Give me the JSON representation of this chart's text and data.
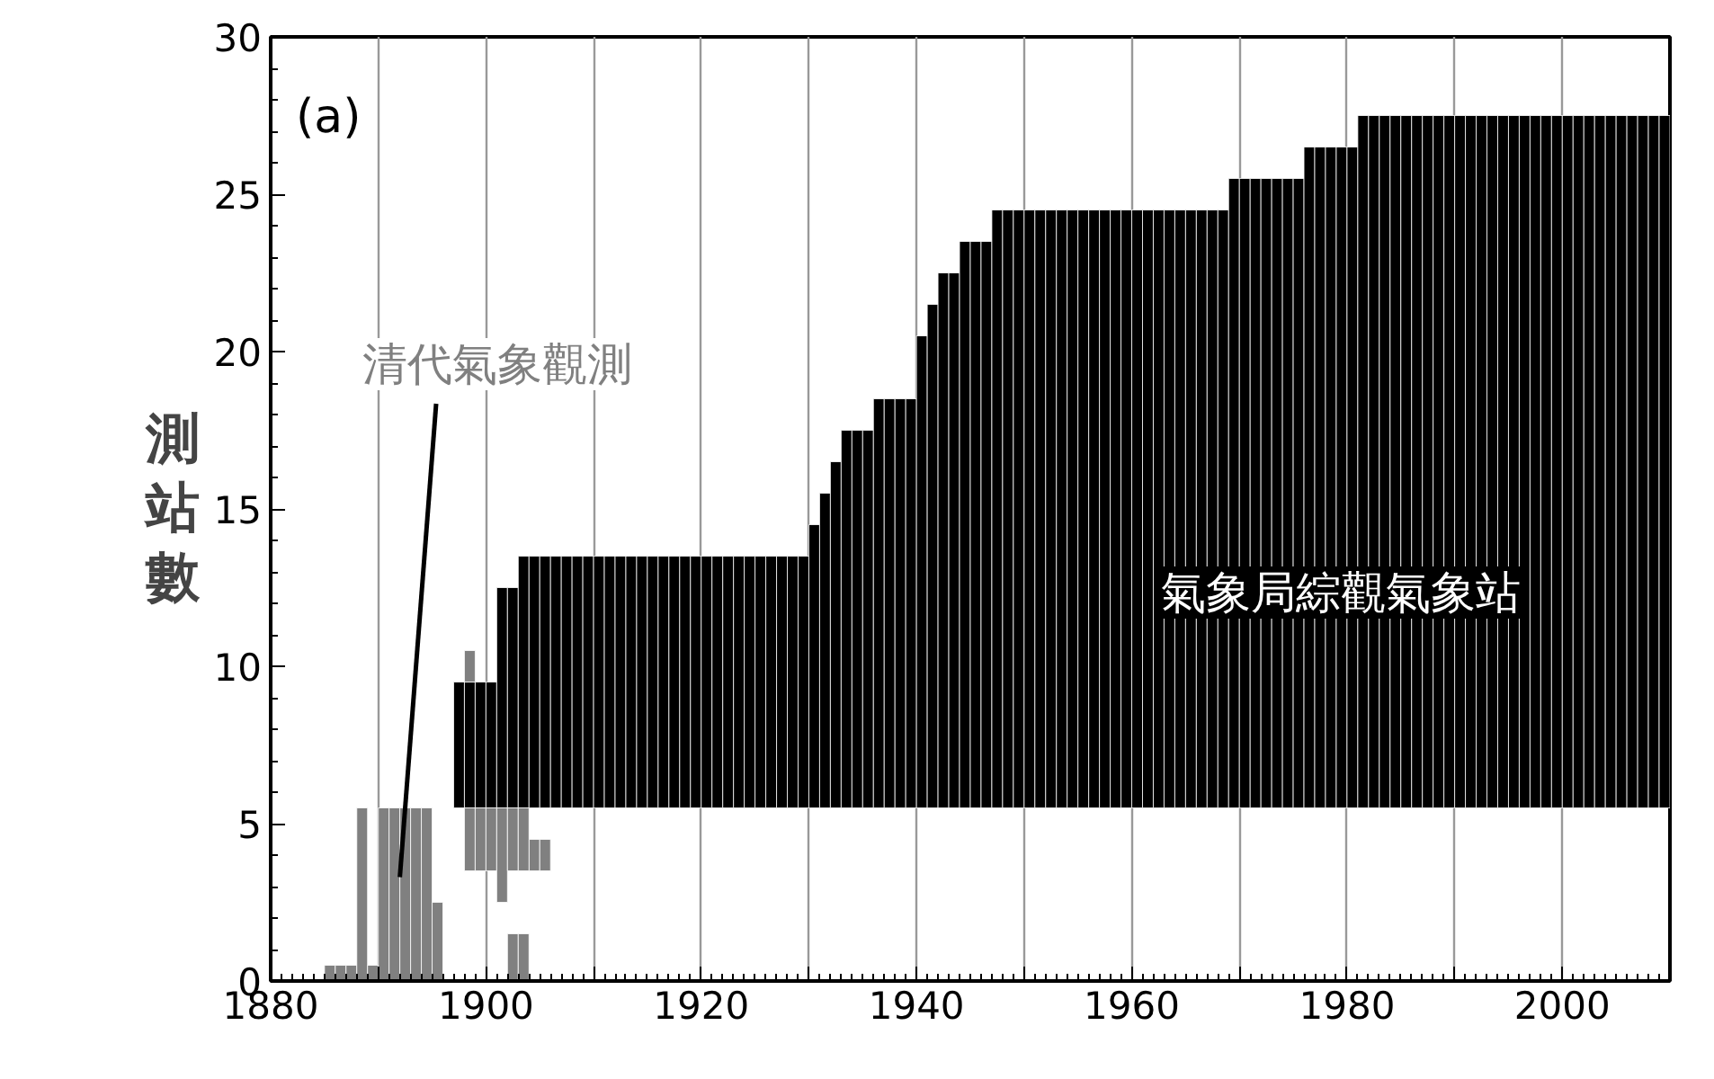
{
  "chart_data": {
    "type": "bar",
    "ylabel": "測站數",
    "grid": "x",
    "xlim": [
      1880,
      2010
    ],
    "ylim": [
      0,
      30
    ],
    "xticks": [
      1880,
      {
        "value": 1890,
        "label": null
      },
      1900,
      {
        "value": 1910,
        "label": null
      },
      1920,
      {
        "value": 1930,
        "label": null
      },
      1940,
      {
        "value": 1950,
        "label": null
      },
      1960,
      {
        "value": 1970,
        "label": null
      },
      1980,
      {
        "value": 1990,
        "label": null
      },
      2000,
      {
        "value": 2010,
        "label": null
      }
    ],
    "yticks": [
      0,
      5,
      10,
      15,
      20,
      25,
      30
    ],
    "annotations": [
      "(a)",
      {
        "text": "清代氣象觀測",
        "x": 1892,
        "y": 3.3
      },
      "氣象局綜觀氣象站"
    ],
    "series": [
      {
        "color": "#000000",
        "x": [
          1897.5,
          1898.5,
          1899.5,
          1900.5,
          1901.5,
          1902.5,
          1903.5,
          1904.5,
          1905.5,
          1906.5,
          1907.5,
          1908.5,
          1909.5,
          1910.5,
          1911.5,
          1912.5,
          1913.5,
          1914.5,
          1915.5,
          1916.5,
          1917.5,
          1918.5,
          1919.5,
          1920.5,
          1921.5,
          1922.5,
          1923.5,
          1924.5,
          1925.5,
          1926.5,
          1927.5,
          1928.5,
          1929.5,
          1930.5,
          1931.5,
          1932.5,
          1933.5,
          1934.5,
          1935.5,
          1936.5,
          1937.5,
          1938.5,
          1939.5,
          1940.5,
          1941.5,
          1942.5,
          1943.5,
          1944.5,
          1945.5,
          1946.5,
          1947.5,
          1948.5,
          1949.5,
          1950.5,
          1951.5,
          1952.5,
          1953.5,
          1954.5,
          1955.5,
          1956.5,
          1957.5,
          1958.5,
          1959.5,
          1960.5,
          1961.5,
          1962.5,
          1963.5,
          1964.5,
          1965.5,
          1966.5,
          1967.5,
          1968.5,
          1969.5,
          1970.5,
          1971.5,
          1972.5,
          1973.5,
          1974.5,
          1975.5,
          1976.5,
          1977.5,
          1978.5,
          1979.5,
          1980.5,
          1981.5,
          1982.5,
          1983.5,
          1984.5,
          1985.5,
          1986.5,
          1987.5,
          1988.5,
          1989.5,
          1990.5,
          1991.5,
          1992.5,
          1993.5,
          1994.5,
          1995.5,
          1996.5,
          1997.5,
          1998.5,
          1999.5,
          2000.5,
          2001.5,
          2002.5,
          2003.5,
          2004.5,
          2005.5,
          2006.5,
          2007.5,
          2008.5,
          2009.5
        ],
        "base": [
          5.5,
          5.5,
          5.5,
          5.5,
          5.5,
          5.5,
          5.5,
          5.5,
          5.5,
          5.5,
          5.5,
          5.5,
          5.5,
          5.5,
          5.5,
          5.5,
          5.5,
          5.5,
          5.5,
          5.5,
          5.5,
          5.5,
          5.5,
          5.5,
          5.5,
          5.5,
          5.5,
          5.5,
          5.5,
          5.5,
          5.5,
          5.5,
          5.5,
          5.5,
          5.5,
          5.5,
          5.5,
          5.5,
          5.5,
          5.5,
          5.5,
          5.5,
          5.5,
          5.5,
          5.5,
          5.5,
          5.5,
          5.5,
          5.5,
          5.5,
          5.5,
          5.5,
          5.5,
          5.5,
          5.5,
          5.5,
          5.5,
          5.5,
          5.5,
          5.5,
          5.5,
          5.5,
          5.5,
          5.5,
          5.5,
          5.5,
          5.5,
          5.5,
          5.5,
          5.5,
          5.5,
          5.5,
          5.5,
          5.5,
          5.5,
          5.5,
          5.5,
          5.5,
          5.5,
          5.5,
          5.5,
          5.5,
          5.5,
          5.5,
          5.5,
          5.5,
          5.5,
          5.5,
          5.5,
          5.5,
          5.5,
          5.5,
          5.5,
          5.5,
          5.5,
          5.5,
          5.5,
          5.5,
          5.5,
          5.5,
          5.5,
          5.5,
          5.5,
          5.5,
          5.5,
          5.5,
          5.5,
          5.5,
          5.5,
          5.5,
          5.5,
          5.5,
          5.5
        ],
        "values": [
          4,
          4,
          4,
          4,
          7,
          7,
          8,
          8,
          8,
          8,
          8,
          8,
          8,
          8,
          8,
          8,
          8,
          8,
          8,
          8,
          8,
          8,
          8,
          8,
          8,
          8,
          8,
          8,
          8,
          8,
          8,
          8,
          8,
          9,
          10,
          11,
          12,
          12,
          12,
          13,
          13,
          13,
          13,
          15,
          16,
          17,
          17,
          18,
          18,
          18,
          19,
          19,
          19,
          19,
          19,
          19,
          19,
          19,
          19,
          19,
          19,
          19,
          19,
          19,
          19,
          19,
          19,
          19,
          19,
          19,
          19,
          19,
          20,
          20,
          20,
          20,
          20,
          20,
          20,
          21,
          21,
          21,
          21,
          21,
          22,
          22,
          22,
          22,
          22,
          22,
          22,
          22,
          22,
          22,
          22,
          22,
          22,
          22,
          22,
          22,
          22,
          22,
          22,
          22,
          22,
          22,
          22,
          22,
          22,
          22,
          22,
          22,
          22
        ]
      },
      {
        "color": "#808080",
        "x": [
          1885.5,
          1886.5,
          1887.5,
          1888.5,
          1889.5,
          1890.5,
          1891.5,
          1892.5,
          1893.5,
          1894.5,
          1895.5,
          1898.5,
          1899.5,
          1900.5,
          1901.5,
          1902.5,
          1903.5,
          1904.5,
          1905.5
        ],
        "base": [
          0,
          0,
          0,
          0,
          0,
          0,
          0,
          0,
          0,
          0,
          0,
          3.5,
          3.5,
          3.5,
          2.5,
          0,
          0,
          3.5,
          3.5
        ],
        "values": [
          0.5,
          0.5,
          0.5,
          5.5,
          0.5,
          5.5,
          5.5,
          5.5,
          5.5,
          5.5,
          2.5,
          2,
          2,
          2,
          3,
          1.5,
          1.5,
          1,
          1
        ]
      },
      {
        "color": "#808080",
        "x": [
          1898.5,
          1902.5,
          1903.5
        ],
        "base": [
          9.5,
          3.5,
          3.5
        ],
        "values": [
          1,
          2,
          2
        ]
      }
    ]
  }
}
